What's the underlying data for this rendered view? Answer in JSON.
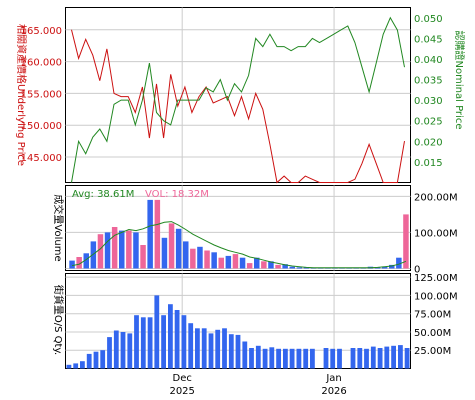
{
  "colors": {
    "underlying": "#cc1111",
    "nominal": "#228822",
    "vol_blue": "#3366ee",
    "vol_pink": "#ee6699",
    "grid": "#cccccc",
    "frame": "#000000"
  },
  "chart_data": [
    {
      "type": "line",
      "panel": "price",
      "y_left_label": "相關資產價格Underlying Price",
      "y_right_label": "認購證Nominal Price",
      "y_left_ticks": [
        "165.000",
        "160.000",
        "155.000",
        "150.000",
        "145.000"
      ],
      "y_left_lim": [
        141.0,
        168.5
      ],
      "y_right_ticks": [
        "0.050",
        "0.045",
        "0.040",
        "0.035",
        "0.030",
        "0.025",
        "0.020",
        "0.015"
      ],
      "y_right_lim": [
        0.01,
        0.0525
      ],
      "series": [
        {
          "axis": "left",
          "values": [
            165.0,
            160.5,
            163.5,
            161.0,
            157.0,
            162.0,
            155.0,
            154.5,
            154.5,
            152.0,
            156.0,
            148.0,
            156.5,
            148.0,
            158.0,
            153.0,
            156.0,
            152.0,
            154.5,
            156.0,
            153.5,
            154.0,
            154.5,
            151.5,
            154.5,
            151.0,
            155.0,
            152.5,
            147.0,
            140.0,
            142.0,
            139.5,
            141.0,
            142.0,
            141.5,
            141.0,
            139.5,
            138.5,
            140.0,
            139.0,
            141.5,
            144.0,
            147.0,
            144.0,
            139.5,
            137.5,
            140.0,
            147.5
          ]
        },
        {
          "axis": "right",
          "values": [
            0.01,
            0.02,
            0.017,
            0.021,
            0.023,
            0.02,
            0.029,
            0.03,
            0.03,
            0.024,
            0.03,
            0.039,
            0.027,
            0.025,
            0.024,
            0.03,
            0.03,
            0.03,
            0.03,
            0.033,
            0.032,
            0.035,
            0.03,
            0.034,
            0.032,
            0.036,
            0.045,
            0.043,
            0.046,
            0.043,
            0.043,
            0.042,
            0.043,
            0.043,
            0.045,
            0.044,
            0.045,
            0.046,
            0.047,
            0.048,
            0.044,
            0.038,
            0.032,
            0.039,
            0.046,
            0.05,
            0.047,
            0.038
          ]
        }
      ]
    },
    {
      "type": "bar",
      "panel": "volume",
      "y_label": "成交量Volume",
      "avg_label": "Avg: 38.61M",
      "vol_label": "VOL: 18.32M",
      "y_ticks": [
        "200.00M",
        "100.00M",
        "0"
      ],
      "y_lim": [
        0,
        230
      ],
      "values": [
        22,
        32,
        42,
        75,
        95,
        100,
        115,
        105,
        105,
        100,
        65,
        190,
        190,
        85,
        125,
        110,
        75,
        55,
        60,
        50,
        45,
        30,
        35,
        40,
        30,
        15,
        30,
        20,
        20,
        10,
        12,
        5,
        3,
        3,
        2,
        2,
        2,
        2,
        2,
        2,
        2,
        2,
        5,
        3,
        5,
        10,
        30,
        150
      ],
      "colors": [
        "blue",
        "pink",
        "blue",
        "blue",
        "pink",
        "blue",
        "pink",
        "blue",
        "pink",
        "blue",
        "pink",
        "blue",
        "pink",
        "blue",
        "pink",
        "blue",
        "blue",
        "pink",
        "blue",
        "pink",
        "blue",
        "pink",
        "blue",
        "pink",
        "blue",
        "pink",
        "blue",
        "pink",
        "blue",
        "pink",
        "blue",
        "blue",
        "blue",
        "blue",
        "blue",
        "blue",
        "blue",
        "blue",
        "blue",
        "blue",
        "blue",
        "blue",
        "blue",
        "blue",
        "blue",
        "blue",
        "blue",
        "pink"
      ],
      "avg_values": [
        8,
        12,
        25,
        40,
        55,
        75,
        92,
        100,
        108,
        105,
        110,
        118,
        122,
        128,
        130,
        120,
        108,
        95,
        85,
        75,
        65,
        57,
        50,
        45,
        40,
        32,
        28,
        23,
        18,
        14,
        10,
        7,
        5,
        3,
        2,
        2,
        2,
        2,
        2,
        2,
        2,
        2,
        2,
        3,
        5,
        7,
        12,
        20
      ]
    },
    {
      "type": "bar",
      "panel": "outstanding",
      "y_label": "街貨量O/S Qty.",
      "y_ticks": [
        "125.00M",
        "100.00M",
        "75.00M",
        "50.00M",
        "25.00M"
      ],
      "y_lim": [
        0,
        130
      ],
      "x_ticks": [
        {
          "label": "Dec",
          "sub": "2025",
          "at": 16.75
        },
        {
          "label": "Jan",
          "sub": "2026",
          "at": 39.2
        }
      ],
      "values": [
        5,
        7,
        10,
        20,
        23,
        25,
        43,
        52,
        50,
        48,
        73,
        70,
        70,
        100,
        73,
        88,
        80,
        73,
        62,
        55,
        55,
        48,
        53,
        55,
        47,
        46,
        37,
        28,
        31,
        27,
        29,
        27,
        27,
        27,
        27,
        27,
        27,
        0,
        28,
        27,
        27,
        0,
        28,
        28,
        27,
        30,
        28,
        30,
        31,
        32,
        28
      ]
    }
  ]
}
